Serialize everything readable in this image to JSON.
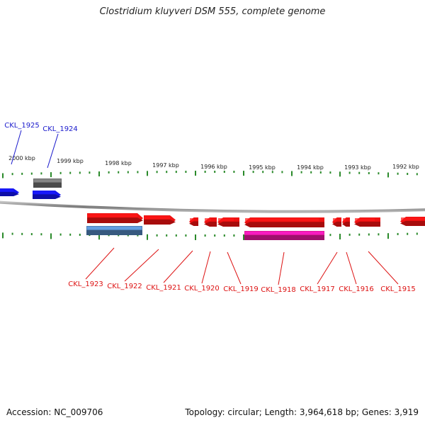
{
  "title": "Clostridium kluyveri DSM 555, complete genome",
  "accession_label": "Accession: NC_009706",
  "stats_label": "Topology: circular; Length: 3,964,618 bp; Genes: 3,919",
  "colors": {
    "backbone": "#8c8c8c",
    "tick": "#2a8a2a",
    "label_blue": "#1a1acc",
    "label_red": "#dd1111",
    "gene_blue": "#1414f0",
    "gene_gray": "#6b6b6b",
    "gene_red": "#ee1111",
    "gene_steel": "#4f7fb5",
    "gene_magenta": "#e3179b"
  },
  "kbp_labels": [
    "2000 kbp",
    "1999 kbp",
    "1998 kbp",
    "1997 kbp",
    "1996 kbp",
    "1995 kbp",
    "1994 kbp",
    "1993 kbp",
    "1992 kbp"
  ],
  "genes_top": [
    {
      "id": "CKL_1925",
      "label": "CKL_1925",
      "color": "gene_blue",
      "strand": "+"
    },
    {
      "id": "CKL_1924",
      "label": "CKL_1924",
      "color": "gene_blue",
      "strand": "+"
    },
    {
      "id": "CKL_1924_extra",
      "label": "",
      "color": "gene_gray",
      "strand": "none"
    }
  ],
  "genes_bottom": [
    {
      "id": "CKL_1923",
      "label": "CKL_1923",
      "color": "gene_red",
      "strand": "+"
    },
    {
      "id": "CKL_1923_sub",
      "label": "",
      "color": "gene_steel",
      "strand": "none"
    },
    {
      "id": "CKL_1922",
      "label": "CKL_1922",
      "color": "gene_red",
      "strand": "+"
    },
    {
      "id": "CKL_1921",
      "label": "CKL_1921",
      "color": "gene_red",
      "strand": "-"
    },
    {
      "id": "CKL_1920",
      "label": "CKL_1920",
      "color": "gene_red",
      "strand": "-"
    },
    {
      "id": "CKL_1919",
      "label": "CKL_1919",
      "color": "gene_red",
      "strand": "-"
    },
    {
      "id": "CKL_1918",
      "label": "CKL_1918",
      "color": "gene_red",
      "strand": "-"
    },
    {
      "id": "CKL_1918_sub",
      "label": "",
      "color": "gene_magenta",
      "strand": "none"
    },
    {
      "id": "CKL_1917",
      "label": "CKL_1917",
      "color": "gene_red",
      "strand": "-"
    },
    {
      "id": "CKL_1916",
      "label": "CKL_1916",
      "color": "gene_red",
      "strand": "-"
    },
    {
      "id": "CKL_1915",
      "label": "CKL_1915",
      "color": "gene_red",
      "strand": "-"
    },
    {
      "id": "CKL_1914",
      "label": "",
      "color": "gene_red",
      "strand": "-"
    }
  ]
}
